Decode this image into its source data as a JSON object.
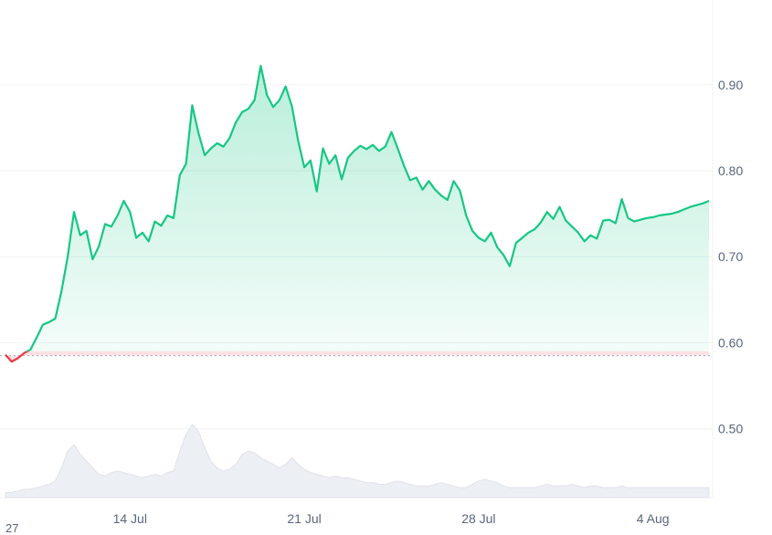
{
  "chart_data": {
    "type": "area",
    "title": "",
    "xlabel": "",
    "ylabel": "",
    "ylim": [
      0.42,
      0.99
    ],
    "x_ticks": [
      "14 Jul",
      "21 Jul",
      "28 Jul",
      "4 Aug"
    ],
    "y_ticks": [
      "0.90",
      "0.80",
      "0.70",
      "0.60",
      "0.50"
    ],
    "cut_label": "27",
    "baseline": 0.585,
    "colors": {
      "up": "#16c784",
      "down": "#ea3943",
      "volume": "#eceff3",
      "grid": "#eff2f5",
      "baseline": "#a6b0c3"
    },
    "series": [
      {
        "x": [
          "2024-07-09T00:00",
          "2024-07-09T06:00",
          "2024-07-09T12:00",
          "2024-07-09T18:00",
          "2024-07-10T00:00",
          "2024-07-10T06:00",
          "2024-07-10T12:00",
          "2024-07-10T18:00",
          "2024-07-11T00:00",
          "2024-07-11T06:00",
          "2024-07-11T12:00",
          "2024-07-11T18:00",
          "2024-07-12T00:00",
          "2024-07-12T06:00",
          "2024-07-12T12:00",
          "2024-07-12T18:00",
          "2024-07-13T00:00",
          "2024-07-13T06:00",
          "2024-07-13T12:00",
          "2024-07-13T18:00",
          "2024-07-14T00:00",
          "2024-07-14T06:00",
          "2024-07-14T12:00",
          "2024-07-14T18:00",
          "2024-07-15T00:00",
          "2024-07-15T06:00",
          "2024-07-15T12:00",
          "2024-07-15T18:00",
          "2024-07-16T00:00",
          "2024-07-16T06:00",
          "2024-07-16T12:00",
          "2024-07-16T18:00",
          "2024-07-17T00:00",
          "2024-07-17T06:00",
          "2024-07-17T12:00",
          "2024-07-17T18:00",
          "2024-07-18T00:00",
          "2024-07-18T06:00",
          "2024-07-18T12:00",
          "2024-07-18T18:00",
          "2024-07-19T00:00",
          "2024-07-19T06:00",
          "2024-07-19T12:00",
          "2024-07-19T18:00",
          "2024-07-20T00:00",
          "2024-07-20T06:00",
          "2024-07-20T12:00",
          "2024-07-20T18:00",
          "2024-07-21T00:00",
          "2024-07-21T06:00",
          "2024-07-21T12:00",
          "2024-07-21T18:00",
          "2024-07-22T00:00",
          "2024-07-22T06:00",
          "2024-07-22T12:00",
          "2024-07-22T18:00",
          "2024-07-23T00:00",
          "2024-07-23T06:00",
          "2024-07-23T12:00",
          "2024-07-23T18:00",
          "2024-07-24T00:00",
          "2024-07-24T06:00",
          "2024-07-24T12:00",
          "2024-07-24T18:00",
          "2024-07-25T00:00",
          "2024-07-25T06:00",
          "2024-07-25T12:00",
          "2024-07-25T18:00",
          "2024-07-26T00:00",
          "2024-07-26T06:00",
          "2024-07-26T12:00",
          "2024-07-26T18:00",
          "2024-07-27T00:00",
          "2024-07-27T06:00",
          "2024-07-27T12:00",
          "2024-07-27T18:00",
          "2024-07-28T00:00",
          "2024-07-28T06:00",
          "2024-07-28T12:00",
          "2024-07-28T18:00",
          "2024-07-29T00:00",
          "2024-07-29T06:00",
          "2024-07-29T12:00",
          "2024-07-29T18:00",
          "2024-07-30T00:00",
          "2024-07-30T06:00",
          "2024-07-30T12:00",
          "2024-07-30T18:00",
          "2024-07-31T00:00",
          "2024-07-31T06:00",
          "2024-07-31T12:00",
          "2024-07-31T18:00",
          "2024-08-01T00:00",
          "2024-08-01T06:00",
          "2024-08-01T12:00",
          "2024-08-01T18:00",
          "2024-08-02T00:00",
          "2024-08-02T06:00",
          "2024-08-02T12:00",
          "2024-08-02T18:00",
          "2024-08-03T00:00",
          "2024-08-03T06:00",
          "2024-08-03T12:00",
          "2024-08-03T18:00",
          "2024-08-04T00:00",
          "2024-08-04T06:00",
          "2024-08-04T12:00",
          "2024-08-04T18:00",
          "2024-08-05T00:00",
          "2024-08-05T06:00",
          "2024-08-05T12:00",
          "2024-08-05T18:00",
          "2024-08-06T00:00",
          "2024-08-06T06:00"
        ],
        "price": [
          0.586,
          0.578,
          0.582,
          0.588,
          0.592,
          0.606,
          0.621,
          0.624,
          0.628,
          0.66,
          0.7,
          0.752,
          0.725,
          0.73,
          0.697,
          0.712,
          0.738,
          0.735,
          0.748,
          0.765,
          0.752,
          0.722,
          0.728,
          0.718,
          0.741,
          0.736,
          0.748,
          0.745,
          0.795,
          0.808,
          0.876,
          0.844,
          0.818,
          0.826,
          0.832,
          0.828,
          0.838,
          0.856,
          0.868,
          0.872,
          0.882,
          0.922,
          0.888,
          0.874,
          0.882,
          0.898,
          0.875,
          0.835,
          0.804,
          0.812,
          0.776,
          0.826,
          0.808,
          0.818,
          0.79,
          0.815,
          0.823,
          0.829,
          0.825,
          0.83,
          0.823,
          0.828,
          0.845,
          0.826,
          0.806,
          0.789,
          0.792,
          0.778,
          0.788,
          0.778,
          0.771,
          0.766,
          0.788,
          0.777,
          0.748,
          0.73,
          0.722,
          0.718,
          0.728,
          0.711,
          0.702,
          0.689,
          0.716,
          0.722,
          0.728,
          0.732,
          0.74,
          0.752,
          0.744,
          0.758,
          0.742,
          0.735,
          0.728,
          0.718,
          0.725,
          0.721,
          0.742,
          0.743,
          0.739,
          0.767,
          0.745,
          0.741,
          0.743,
          0.745,
          0.746,
          0.748,
          0.749,
          0.75,
          0.752,
          0.755,
          0.758,
          0.76,
          0.762,
          0.765
        ],
        "volume": [
          3,
          3,
          4,
          5,
          5,
          6,
          7,
          8,
          10,
          18,
          28,
          32,
          26,
          22,
          18,
          14,
          13,
          15,
          16,
          15,
          14,
          13,
          12,
          13,
          14,
          13,
          15,
          16,
          28,
          38,
          44,
          40,
          30,
          22,
          18,
          16,
          17,
          20,
          26,
          28,
          27,
          24,
          22,
          20,
          18,
          20,
          24,
          20,
          17,
          15,
          14,
          13,
          12,
          13,
          12,
          12,
          11,
          10,
          9,
          9,
          8,
          8,
          9,
          10,
          9,
          8,
          7,
          7,
          7,
          8,
          9,
          8,
          7,
          6,
          6,
          8,
          10,
          11,
          10,
          9,
          7,
          6,
          6,
          6,
          6,
          6,
          7,
          8,
          7,
          7,
          7,
          8,
          7,
          6,
          7,
          7,
          6,
          6,
          6,
          7,
          6,
          6,
          6,
          6,
          6,
          6,
          6,
          6,
          6,
          6,
          6,
          6,
          6,
          6
        ]
      }
    ]
  }
}
